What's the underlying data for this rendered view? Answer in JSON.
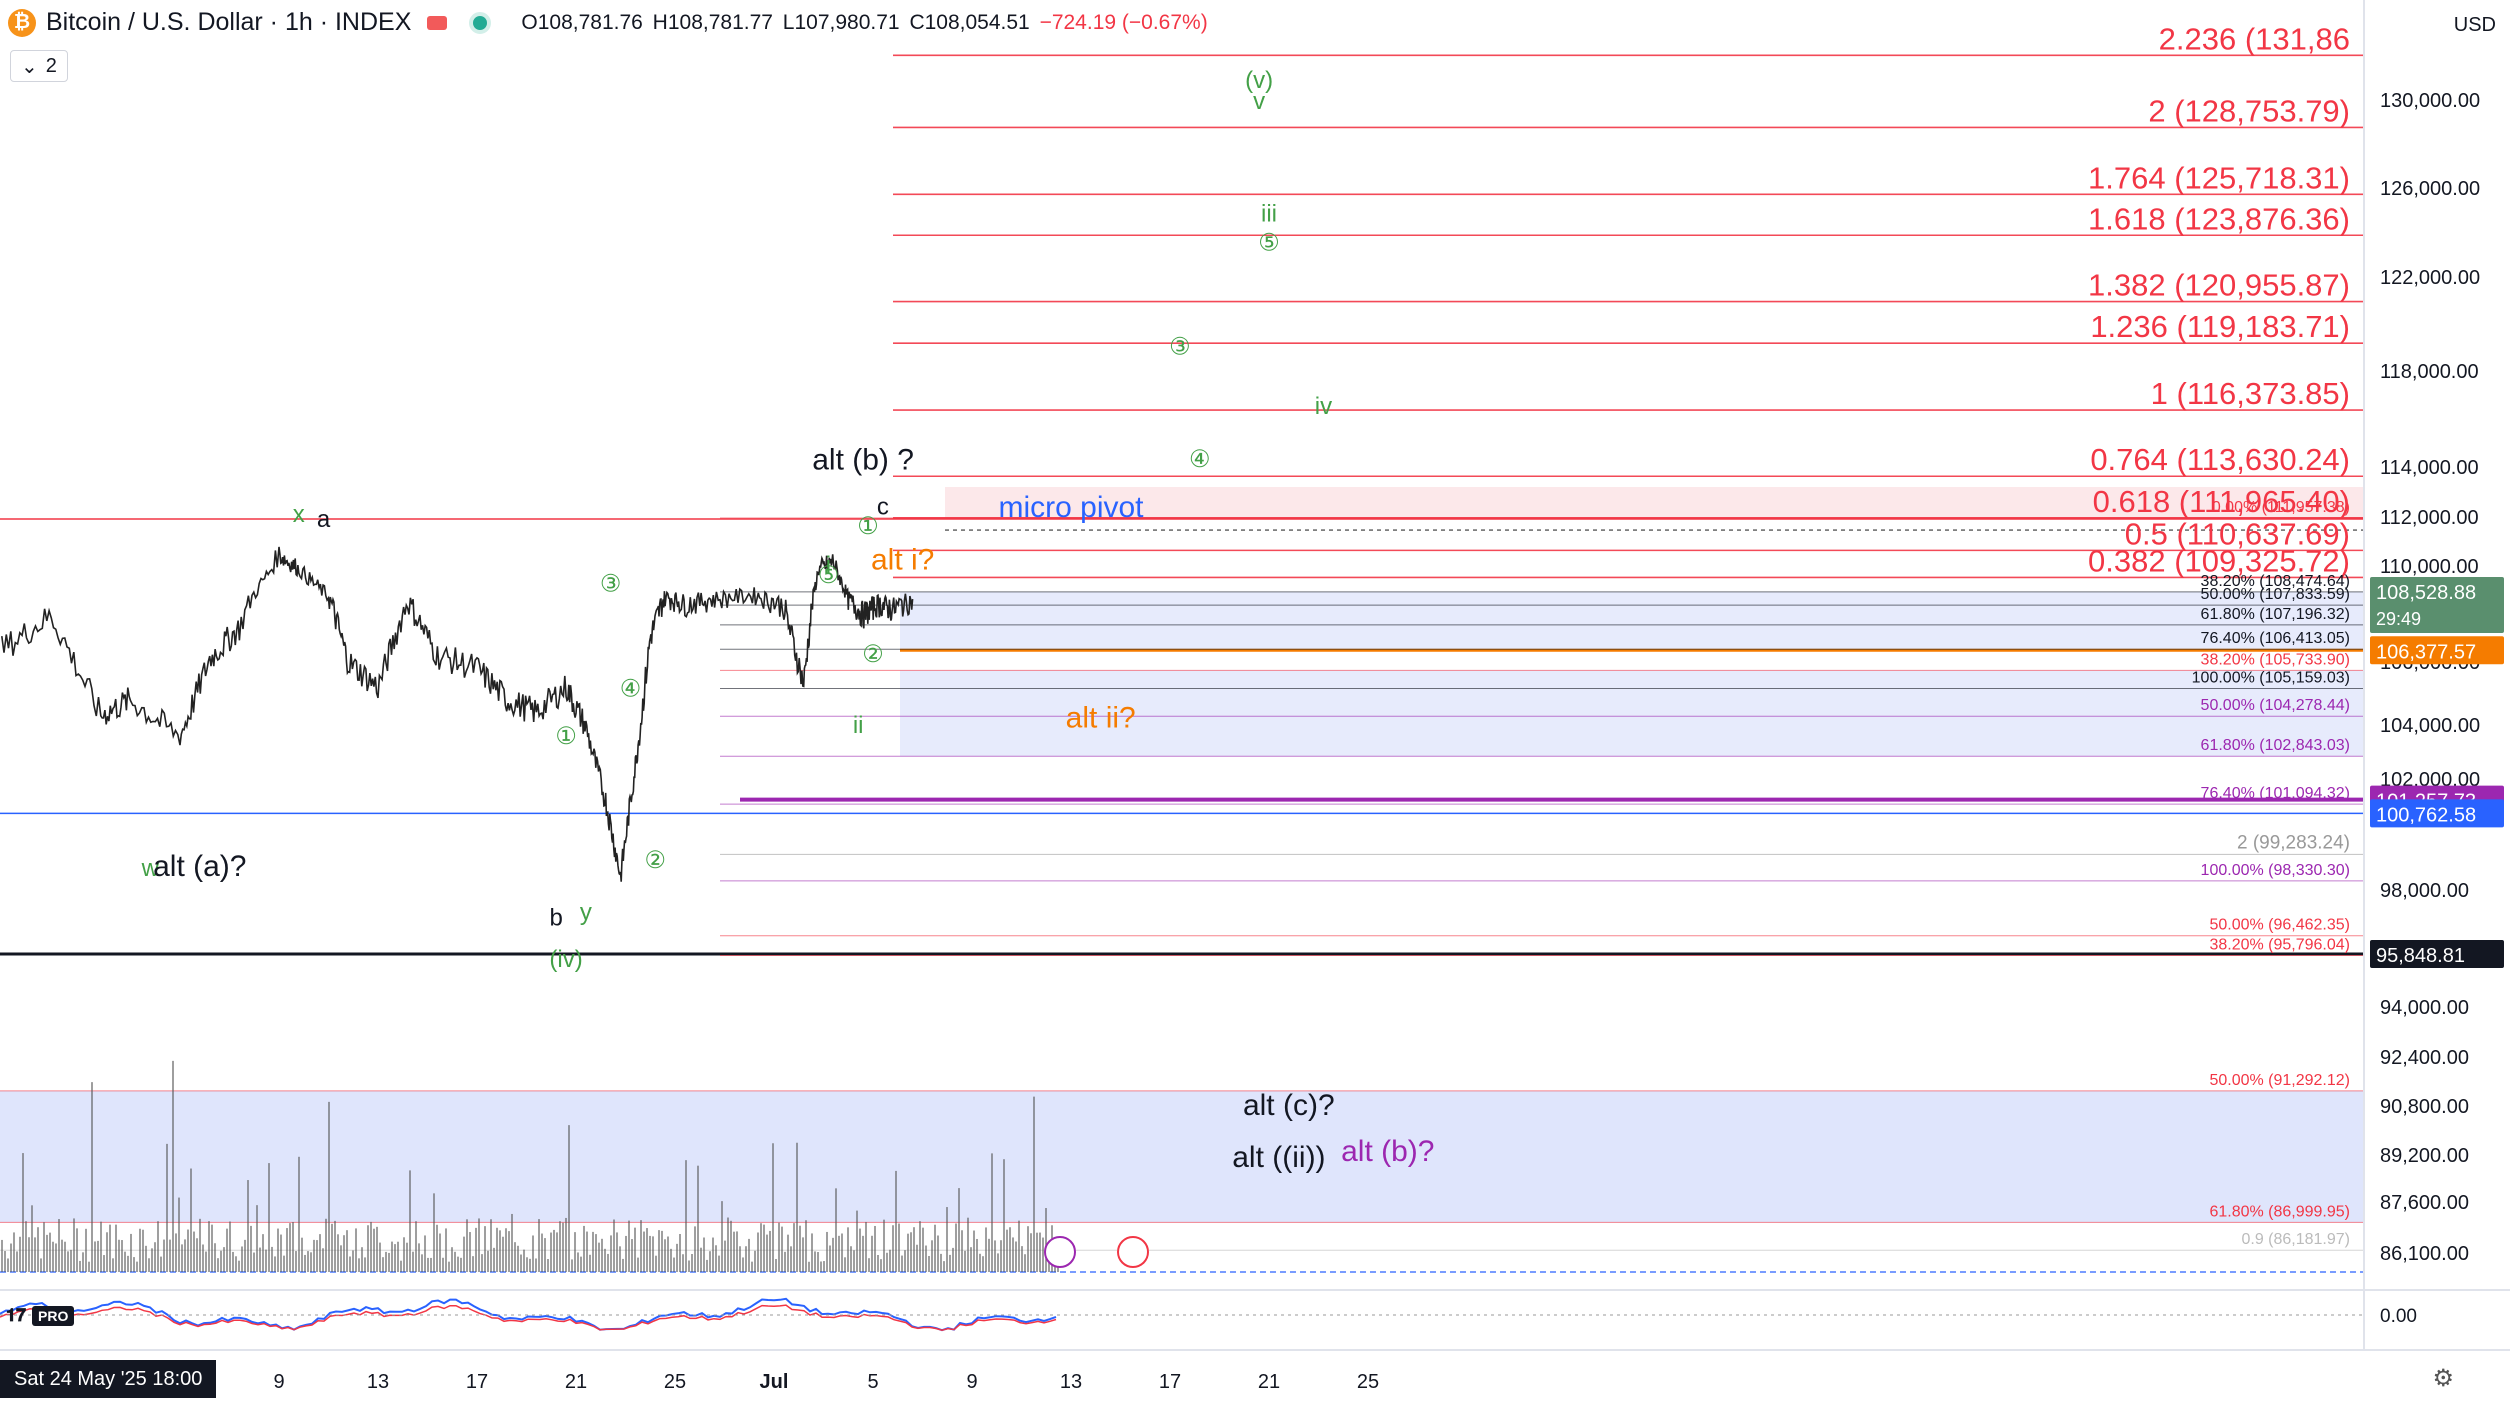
{
  "header": {
    "logo_glyph": "₿",
    "title": "Bitcoin / U.S. Dollar · 1h · INDEX",
    "ohlc": {
      "o": "O108,781.76",
      "h": "H108,781.77",
      "l": "L107,980.71",
      "c": "C108,054.51",
      "change": "−724.19 (−0.67%)"
    },
    "indicator_count": "2",
    "currency": "USD"
  },
  "chart_data": {
    "type": "line",
    "title": "Bitcoin / U.S. Dollar · 1h · INDEX",
    "timeframe": "1h",
    "ylim": [
      84800,
      132100
    ],
    "x_axis_labels": [
      {
        "i": 0,
        "label": "Sat 24 May '25  18:00"
      },
      {
        "i": 2,
        "label": "5"
      },
      {
        "i": 3,
        "label": "9"
      },
      {
        "i": 4,
        "label": "13"
      },
      {
        "i": 5,
        "label": "17"
      },
      {
        "i": 6,
        "label": "21"
      },
      {
        "i": 7,
        "label": "25"
      },
      {
        "i": 8,
        "label": "Jul"
      },
      {
        "i": 9,
        "label": "5"
      },
      {
        "i": 10,
        "label": "9"
      },
      {
        "i": 11,
        "label": "13"
      },
      {
        "i": 12,
        "label": "17"
      },
      {
        "i": 13,
        "label": "21"
      },
      {
        "i": 14,
        "label": "25"
      }
    ],
    "y_ticks": [
      86100,
      87600,
      89200,
      90800,
      92400,
      94000,
      98000,
      102000,
      104000,
      106000,
      108000,
      110000,
      112000,
      114000,
      118000,
      122000,
      126000,
      130000
    ],
    "y_tick_labels": [
      "86,100.00",
      "87,600.00",
      "89,200.00",
      "90,800.00",
      "92,400.00",
      "94,000.00",
      "98,000.00",
      "102,000.00",
      "104,000.00",
      "106,000.00",
      "108,000.00",
      "110,000.00",
      "112,000.00",
      "114,000.00",
      "118,000.00",
      "122,000.00",
      "126,000.00",
      "130,000.00"
    ],
    "price_series": {
      "name": "BTCUSD",
      "x": [
        -1.8,
        -1.4,
        -1.0,
        -0.6,
        -0.3,
        0.2,
        0.7,
        1.2,
        1.5,
        2.0,
        2.3,
        2.6,
        3.0,
        3.2,
        3.5,
        3.7,
        4.0,
        4.3,
        4.6,
        5.0,
        5.3,
        5.6,
        5.9,
        6.1,
        6.3,
        6.45,
        6.6,
        6.75,
        6.9,
        7.1,
        7.4,
        7.8,
        8.1,
        8.3,
        8.45,
        8.6,
        8.75,
        8.9,
        9.05,
        9.2,
        9.4
      ],
      "values": [
        108600,
        106800,
        109500,
        108900,
        110000,
        106400,
        107500,
        104300,
        104800,
        103600,
        106100,
        107100,
        110500,
        109800,
        108200,
        106000,
        105200,
        108000,
        106200,
        105800,
        104800,
        104400,
        105200,
        103900,
        101200,
        98500,
        102500,
        106800,
        108200,
        107900,
        108100,
        108300,
        107800,
        105300,
        109800,
        110200,
        108100,
        107500,
        107900,
        107700,
        108054
      ]
    },
    "levels": [
      {
        "label": "2.236 (131,86",
        "price": 131860,
        "color": "#f23645",
        "text_size": "big"
      },
      {
        "label": "2 (128,753.79)",
        "price": 128753.79,
        "color": "#f23645",
        "text_size": "big"
      },
      {
        "label": "1.764 (125,718.31)",
        "price": 125718.31,
        "color": "#f23645",
        "text_size": "big"
      },
      {
        "label": "1.618 (123,876.36)",
        "price": 123876.36,
        "color": "#f23645",
        "text_size": "big"
      },
      {
        "label": "1.382 (120,955.87)",
        "price": 120955.87,
        "color": "#f23645",
        "text_size": "big"
      },
      {
        "label": "1.236 (119,183.71)",
        "price": 119183.71,
        "color": "#f23645",
        "text_size": "big"
      },
      {
        "label": "1 (116,373.85)",
        "price": 116373.85,
        "color": "#f23645",
        "text_size": "big"
      },
      {
        "label": "0.764 (113,630.24)",
        "price": 113630.24,
        "color": "#f23645",
        "text_size": "big"
      },
      {
        "label": "0.618 (111,965.40)",
        "price": 111965.4,
        "color": "#f23645",
        "text_size": "big"
      },
      {
        "label": "0.5 (110,637.69)",
        "price": 110637.69,
        "color": "#f23645",
        "text_size": "big"
      },
      {
        "label": "0.382 (109,325.72)",
        "price": 109325.72,
        "color": "#f23645",
        "text_size": "big"
      },
      {
        "label": "0.00% (111,957.38)",
        "price": 111957.38,
        "color": "#f23645",
        "text_size": "small"
      },
      {
        "label": "38.20% (108,474.64)",
        "price": 108474.64,
        "color": "#131722",
        "text_size": "small"
      },
      {
        "label": "50.00% (107,833.59)",
        "price": 107833.59,
        "color": "#131722",
        "text_size": "small"
      },
      {
        "label": "61.80% (107,196.32)",
        "price": 107196.32,
        "color": "#131722",
        "text_size": "small"
      },
      {
        "label": "76.40% (106,413.05)",
        "price": 106413.05,
        "color": "#131722",
        "text_size": "small"
      },
      {
        "label": "38.20% (105,733.90)",
        "price": 105733.9,
        "color": "#f23645",
        "text_size": "small"
      },
      {
        "label": "100.00% (105,159.03)",
        "price": 105159.03,
        "color": "#131722",
        "text_size": "small"
      },
      {
        "label": "50.00% (104,278.44)",
        "price": 104278.44,
        "color": "#9c27b0",
        "text_size": "small"
      },
      {
        "label": "61.80% (102,843.03)",
        "price": 102843.03,
        "color": "#9c27b0",
        "text_size": "small"
      },
      {
        "label": "76.40% (101,094.32)",
        "price": 101094.32,
        "color": "#9c27b0",
        "text_size": "small"
      },
      {
        "label": "2 (99,283.24)",
        "price": 99283.24,
        "color": "#999999",
        "text_size": "medium"
      },
      {
        "label": "100.00% (98,330.30)",
        "price": 98330.3,
        "color": "#9c27b0",
        "text_size": "small"
      },
      {
        "label": "50.00% (96,462.35)",
        "price": 96462.35,
        "color": "#f23645",
        "text_size": "small"
      },
      {
        "label": "38.20% (95,796.04)",
        "price": 95796.04,
        "color": "#f23645",
        "text_size": "small"
      },
      {
        "label": "50.00% (91,292.12)",
        "price": 91292.12,
        "color": "#f23645",
        "text_size": "small"
      },
      {
        "label": "61.80% (86,999.95)",
        "price": 86999.95,
        "color": "#f23645",
        "text_size": "small"
      },
      {
        "label": "0.9 (86,181.97)",
        "price": 86181.97,
        "color": "#bbbbbb",
        "text_size": "small"
      }
    ],
    "price_badges": [
      {
        "label": "108,528.88",
        "price": 108528.88,
        "color": "#5a8f6e",
        "sub": "29:49"
      },
      {
        "label": "106,377.57",
        "price": 106377.57,
        "color": "#f57c00"
      },
      {
        "label": "101,257.73",
        "price": 101257.73,
        "color": "#9c27b0"
      },
      {
        "label": "100,762.58",
        "price": 100762.58,
        "color": "#2962ff"
      },
      {
        "label": "95,848.81",
        "price": 95848.81,
        "color": "#131722"
      }
    ],
    "zones": [
      {
        "from": 86999.95,
        "to": 91292.12,
        "color": "#d9e0fb"
      },
      {
        "from": 102843.03,
        "to": 105733.9,
        "color": "#e3e8fb"
      },
      {
        "from": 106413.05,
        "to": 108474.64,
        "color": "#e3e8fb"
      },
      {
        "from": 111965.4,
        "to": 113200,
        "color": "#fbe4e6"
      }
    ],
    "annotations": [
      {
        "text": "(v)",
        "i": 12.9,
        "price": 130500,
        "color": "#43a047"
      },
      {
        "text": "v",
        "i": 12.9,
        "price": 129600,
        "color": "#43a047"
      },
      {
        "text": "iii",
        "i": 13.0,
        "price": 124500,
        "color": "#43a047"
      },
      {
        "text": "⑤",
        "i": 13.0,
        "price": 123200,
        "color": "#43a047"
      },
      {
        "text": "③",
        "i": 12.1,
        "price": 118700,
        "color": "#43a047"
      },
      {
        "text": "iv",
        "i": 13.55,
        "price": 116200,
        "color": "#43a047"
      },
      {
        "text": "④",
        "i": 12.3,
        "price": 114000,
        "color": "#43a047"
      },
      {
        "text": "alt (b) ?",
        "i": 8.9,
        "price": 113900,
        "color": "#131722"
      },
      {
        "text": "micro pivot",
        "i": 11.0,
        "price": 112000,
        "color": "#2962ff"
      },
      {
        "text": "c",
        "i": 9.1,
        "price": 112100,
        "color": "#131722"
      },
      {
        "text": "①",
        "i": 8.95,
        "price": 111300,
        "color": "#43a047"
      },
      {
        "text": "alt i?",
        "i": 9.3,
        "price": 109800,
        "color": "#f57c00"
      },
      {
        "text": "i",
        "i": 8.55,
        "price": 109600,
        "color": "#43a047"
      },
      {
        "text": "⑤",
        "i": 8.55,
        "price": 109000,
        "color": "#43a047"
      },
      {
        "text": "③",
        "i": 6.35,
        "price": 108500,
        "color": "#43a047"
      },
      {
        "text": "②",
        "i": 9.0,
        "price": 106000,
        "color": "#43a047"
      },
      {
        "text": "④",
        "i": 6.55,
        "price": 104900,
        "color": "#43a047"
      },
      {
        "text": "ii",
        "i": 8.85,
        "price": 103700,
        "color": "#43a047"
      },
      {
        "text": "alt ii?",
        "i": 11.3,
        "price": 103900,
        "color": "#f57c00"
      },
      {
        "text": "①",
        "i": 5.9,
        "price": 103300,
        "color": "#43a047"
      },
      {
        "text": "x",
        "i": 3.2,
        "price": 111800,
        "color": "#43a047"
      },
      {
        "text": "a",
        "i": 3.45,
        "price": 111600,
        "color": "#131722"
      },
      {
        "text": "w",
        "i": 1.7,
        "price": 98500,
        "color": "#43a047"
      },
      {
        "text": "alt (a)?",
        "i": 2.2,
        "price": 98500,
        "color": "#131722"
      },
      {
        "text": "②",
        "i": 6.8,
        "price": 98800,
        "color": "#43a047"
      },
      {
        "text": "b",
        "i": 5.8,
        "price": 96800,
        "color": "#131722"
      },
      {
        "text": "y",
        "i": 6.1,
        "price": 97000,
        "color": "#43a047"
      },
      {
        "text": "(iv)",
        "i": 5.9,
        "price": 95400,
        "color": "#43a047"
      },
      {
        "text": "alt (c)?",
        "i": 13.2,
        "price": 90500,
        "color": "#131722"
      },
      {
        "text": "alt ((ii))",
        "i": 13.1,
        "price": 88800,
        "color": "#131722"
      },
      {
        "text": "alt (b)?",
        "i": 14.2,
        "price": 89000,
        "color": "#9c27b0"
      }
    ],
    "oscillator_zero_label": "0.00"
  }
}
